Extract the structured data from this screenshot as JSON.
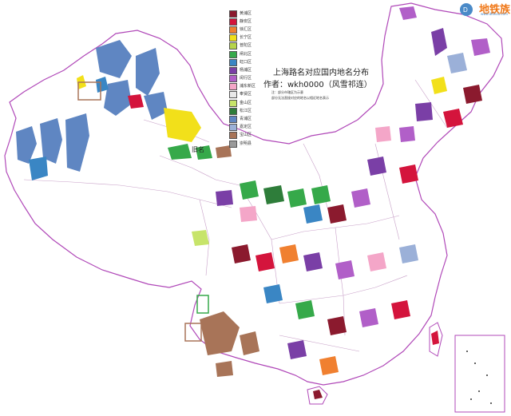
{
  "map": {
    "title": "上海路名对应国内地名分布",
    "author": "作者：wkh0000（风雪祁连）",
    "notes": [
      "注：部分市辖区为示意",
      "部分无法直接对应的地名以相近地名表示"
    ],
    "label_old_name": "旧名",
    "legend": [
      {
        "name": "黄浦区",
        "color": "#8b1a2e"
      },
      {
        "name": "静安区",
        "color": "#d4143c"
      },
      {
        "name": "徐汇区",
        "color": "#f08030"
      },
      {
        "name": "长宁区",
        "color": "#f2e01a"
      },
      {
        "name": "普陀区",
        "color": "#b6d44a"
      },
      {
        "name": "闸北区",
        "color": "#36a94a"
      },
      {
        "name": "虹口区",
        "color": "#3a86c4"
      },
      {
        "name": "杨浦区",
        "color": "#7a3fa6"
      },
      {
        "name": "闵行区",
        "color": "#b15fc8"
      },
      {
        "name": "浦东新区",
        "color": "#f4a6c8"
      },
      {
        "name": "奉贤区",
        "color": "#e8e8e8"
      },
      {
        "name": "金山区",
        "color": "#c7e46a"
      },
      {
        "name": "松江区",
        "color": "#2e7d3a"
      },
      {
        "name": "青浦区",
        "color": "#5f86c2"
      },
      {
        "name": "嘉定区",
        "color": "#9bb0d8"
      },
      {
        "name": "宝山区",
        "color": "#a87458"
      },
      {
        "name": "崇明县",
        "color": "#9a9a9a"
      }
    ]
  },
  "logo": {
    "text": "地铁族",
    "url": "www.ditiezu.com",
    "color": "#f07818"
  },
  "colors": {
    "border": "#b048b8",
    "land": "#ffffff",
    "province_line": "#c8a0c8"
  }
}
